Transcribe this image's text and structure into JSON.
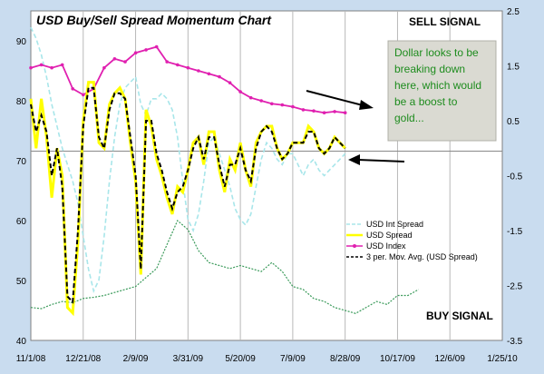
{
  "chart_data": {
    "type": "line",
    "title": "USD Buy/Sell Spread Momentum Chart",
    "signals": {
      "sell": "SELL SIGNAL",
      "buy": "BUY SIGNAL"
    },
    "annotation": "Dollar looks to be breaking down here, which would be a boost to gold...",
    "x_tick_labels": [
      "11/1/08",
      "12/21/08",
      "2/9/09",
      "3/31/09",
      "5/20/09",
      "7/9/09",
      "8/28/09",
      "10/17/09",
      "12/6/09",
      "1/25/10"
    ],
    "y_left": {
      "ylim": [
        40,
        95
      ],
      "ticks": [
        40,
        50,
        60,
        70,
        80,
        90
      ]
    },
    "y_right": {
      "ylim": [
        -3.5,
        2.5
      ],
      "ticks": [
        -3.5,
        -2.5,
        -1.5,
        -0.5,
        0.5,
        1.5,
        2.5
      ]
    },
    "reference_line_left": 71.6,
    "x_range_days": [
      0,
      450
    ],
    "grid": true,
    "legend_position": "bottom-right",
    "colors": {
      "plot_bg": "#ffffff",
      "frame_bg": "#c9dcef",
      "int_spread": "#a8e6ea",
      "spread": "#ffff00",
      "index": "#e020b0",
      "mov_avg": "#000000",
      "green_index": "#3a9a5a",
      "note_box": "#dadad2",
      "note_text": "#1e8c1e"
    },
    "series": [
      {
        "name": "USD Int Spread",
        "axis": "right",
        "style": "dashed",
        "x": [
          0,
          5,
          10,
          15,
          20,
          25,
          30,
          35,
          40,
          45,
          50,
          55,
          60,
          65,
          70,
          75,
          80,
          85,
          90,
          95,
          100,
          105,
          110,
          115,
          120,
          125,
          130,
          135,
          140,
          145,
          150,
          155,
          160,
          165,
          170,
          175,
          180,
          185,
          190,
          195,
          200,
          205,
          210,
          215,
          220,
          225,
          230,
          235,
          240,
          245,
          250,
          255,
          260,
          265,
          270,
          275,
          280,
          285,
          290,
          295,
          300
        ],
        "values": [
          2.2,
          2.0,
          1.7,
          1.3,
          0.8,
          0.4,
          0.0,
          -0.3,
          -0.6,
          -1.0,
          -1.6,
          -2.2,
          -2.6,
          -2.4,
          -1.6,
          -0.6,
          0.2,
          0.8,
          1.1,
          1.2,
          1.3,
          0.8,
          0.6,
          0.9,
          0.9,
          1.0,
          0.9,
          0.7,
          0.2,
          -0.6,
          -1.3,
          -1.5,
          -1.2,
          -0.6,
          0.1,
          0.2,
          -0.1,
          -0.4,
          -0.7,
          -1.1,
          -1.3,
          -1.4,
          -1.2,
          -0.7,
          -0.2,
          0.1,
          0.0,
          -0.2,
          -0.3,
          -0.1,
          -0.1,
          -0.3,
          -0.5,
          -0.3,
          -0.2,
          -0.4,
          -0.5,
          -0.4,
          -0.3,
          -0.2,
          -0.1
        ]
      },
      {
        "name": "USD Spread",
        "axis": "right",
        "style": "solid",
        "x": [
          0,
          5,
          10,
          15,
          20,
          25,
          30,
          35,
          40,
          45,
          50,
          55,
          60,
          65,
          70,
          75,
          80,
          85,
          90,
          95,
          100,
          105,
          110,
          115,
          120,
          125,
          130,
          135,
          140,
          145,
          150,
          155,
          160,
          165,
          170,
          175,
          180,
          185,
          190,
          195,
          200,
          205,
          210,
          215,
          220,
          225,
          230,
          235,
          240,
          245,
          250,
          255,
          260,
          265,
          270,
          275,
          280,
          285,
          290,
          295,
          300
        ],
        "values": [
          0.9,
          0.0,
          0.9,
          0.2,
          -0.9,
          0.0,
          -0.5,
          -2.9,
          -3.0,
          -1.7,
          0.5,
          1.2,
          1.2,
          0.1,
          0.0,
          0.8,
          1.0,
          1.1,
          0.9,
          0.1,
          -0.6,
          -2.3,
          0.7,
          0.4,
          -0.2,
          -0.5,
          -0.9,
          -1.2,
          -0.7,
          -0.8,
          -0.4,
          0.1,
          0.2,
          -0.3,
          0.3,
          0.3,
          -0.4,
          -0.8,
          -0.2,
          -0.4,
          0.1,
          -0.4,
          -0.7,
          0.1,
          0.3,
          0.4,
          0.4,
          0.0,
          -0.2,
          -0.1,
          0.1,
          0.1,
          0.1,
          0.4,
          0.3,
          0.0,
          -0.1,
          0.0,
          0.2,
          0.1,
          0.0
        ]
      },
      {
        "name": "USD Index",
        "axis": "left",
        "style": "markers",
        "x": [
          0,
          10,
          20,
          30,
          40,
          50,
          60,
          70,
          80,
          90,
          100,
          110,
          120,
          130,
          140,
          150,
          160,
          170,
          180,
          190,
          200,
          210,
          220,
          230,
          240,
          250,
          260,
          270,
          280,
          290,
          300
        ],
        "values": [
          85.5,
          86.0,
          85.5,
          86.0,
          82.0,
          81.0,
          82.0,
          85.5,
          87.0,
          86.5,
          88.0,
          88.5,
          89.0,
          86.5,
          86.0,
          85.5,
          85.0,
          84.5,
          84.0,
          83.0,
          81.5,
          80.5,
          80.0,
          79.5,
          79.3,
          79.0,
          78.5,
          78.3,
          78.0,
          78.2,
          78.0
        ]
      },
      {
        "name": "3 per. Mov. Avg. (USD Spread)",
        "axis": "right",
        "style": "dashed-thick",
        "x": [
          0,
          5,
          10,
          15,
          20,
          25,
          30,
          35,
          40,
          45,
          50,
          55,
          60,
          65,
          70,
          75,
          80,
          85,
          90,
          95,
          100,
          105,
          110,
          115,
          120,
          125,
          130,
          135,
          140,
          145,
          150,
          155,
          160,
          165,
          170,
          175,
          180,
          185,
          190,
          195,
          200,
          205,
          210,
          215,
          220,
          225,
          230,
          235,
          240,
          245,
          250,
          255,
          260,
          265,
          270,
          275,
          280,
          285,
          290,
          295,
          300
        ],
        "values": [
          0.8,
          0.3,
          0.6,
          0.3,
          -0.5,
          0.0,
          -0.7,
          -2.7,
          -2.8,
          -1.5,
          0.4,
          1.1,
          1.1,
          0.2,
          0.0,
          0.7,
          1.0,
          1.0,
          0.9,
          0.2,
          -0.5,
          -2.2,
          0.5,
          0.5,
          -0.1,
          -0.4,
          -0.8,
          -1.1,
          -0.8,
          -0.7,
          -0.4,
          0.0,
          0.2,
          -0.2,
          0.2,
          0.2,
          -0.3,
          -0.7,
          -0.3,
          -0.3,
          0.0,
          -0.4,
          -0.6,
          0.0,
          0.3,
          0.4,
          0.3,
          0.0,
          -0.2,
          -0.1,
          0.1,
          0.1,
          0.1,
          0.3,
          0.3,
          0.0,
          -0.1,
          0.0,
          0.2,
          0.1,
          0.0
        ]
      },
      {
        "axis": "left",
        "style": "dotted-green",
        "x": [
          0,
          10,
          20,
          30,
          40,
          50,
          60,
          70,
          80,
          90,
          100,
          110,
          120,
          130,
          140,
          150,
          160,
          170,
          180,
          190,
          200,
          210,
          220,
          230,
          240,
          250,
          260,
          270,
          280,
          290,
          300,
          310,
          320,
          330,
          340,
          350,
          360,
          370
        ],
        "values": [
          45.5,
          45.3,
          46.0,
          46.5,
          46.3,
          47.0,
          47.2,
          47.5,
          48.0,
          48.5,
          49.0,
          50.5,
          52.0,
          56.0,
          60.0,
          58.5,
          55.0,
          53.0,
          52.5,
          52.0,
          52.5,
          52.0,
          51.5,
          53.0,
          51.5,
          49.0,
          48.5,
          47.0,
          46.5,
          45.5,
          45.0,
          44.5,
          45.5,
          46.5,
          46.0,
          47.5,
          47.5,
          48.5
        ]
      }
    ]
  }
}
